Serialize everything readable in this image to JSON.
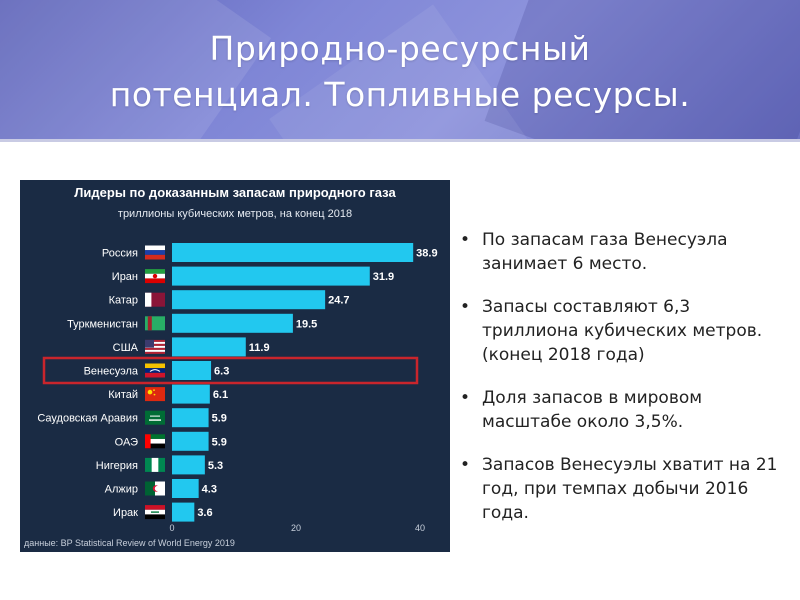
{
  "slide": {
    "title": "Природно-ресурсный\nпотенциал. Топливные ресурсы."
  },
  "bullets": [
    "По запасам газа Венесуэла занимает 6 место.",
    "Запасы составляют 6,3 триллиона кубических метров. (конец 2018 года)",
    "Доля запасов в мировом масштабе около 3,5%.",
    "Запасов Венесуэлы хватит на 21 год, при темпах добычи 2016 года."
  ],
  "colors": {
    "chart_bg": "#1a2b44",
    "bar": "#22c8ef",
    "highlight_border": "#c9252c",
    "header_accent": "#7f86d6"
  },
  "chart_data": {
    "type": "bar",
    "orientation": "horizontal",
    "title": "Лидеры по доказанным запасам природного газа",
    "subtitle": "триллионы кубических метров, на конец 2018",
    "categories": [
      "Россия",
      "Иран",
      "Катар",
      "Туркменистан",
      "США",
      "Венесуэла",
      "Китай",
      "Саудовская Аравия",
      "ОАЭ",
      "Нигерия",
      "Алжир",
      "Ирак"
    ],
    "values": [
      38.9,
      31.9,
      24.7,
      19.5,
      11.9,
      6.3,
      6.1,
      5.9,
      5.9,
      5.3,
      4.3,
      3.6
    ],
    "value_labels": [
      "38.9",
      "31.9",
      "24.7",
      "19.5",
      "11.9",
      "6.3",
      "6.1",
      "5.9",
      "5.9",
      "5.3",
      "4.3",
      "3.6"
    ],
    "flags": [
      "russia-flag-icon",
      "iran-flag-icon",
      "qatar-flag-icon",
      "turkmenistan-flag-icon",
      "usa-flag-icon",
      "venezuela-flag-icon",
      "china-flag-icon",
      "saudi-arabia-flag-icon",
      "uae-flag-icon",
      "nigeria-flag-icon",
      "algeria-flag-icon",
      "iraq-flag-icon"
    ],
    "highlight_category": "Венесуэла",
    "xlim": [
      0,
      40
    ],
    "xticks": [
      "0",
      "20",
      "40"
    ],
    "grid": false,
    "source": "данные: BP Statistical Review of World Energy 2019"
  }
}
